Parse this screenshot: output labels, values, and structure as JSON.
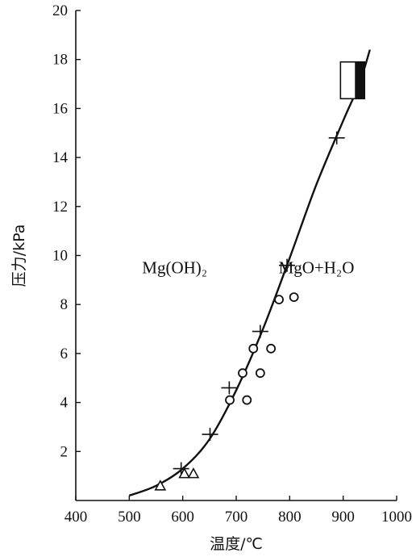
{
  "chart_data": {
    "type": "scatter",
    "xlabel": "温度/℃",
    "ylabel": "压力/kPa",
    "xlim": [
      400,
      1000
    ],
    "ylim": [
      0,
      20
    ],
    "x_ticks": [
      400,
      500,
      600,
      700,
      800,
      900,
      1000
    ],
    "y_ticks": [
      2,
      4,
      6,
      8,
      10,
      12,
      14,
      16,
      18,
      20
    ],
    "regions": [
      {
        "label": "Mg(OH)₂",
        "x": 585,
        "y": 9.5
      },
      {
        "label": "MgO+H₂O",
        "x": 850,
        "y": 9.5
      }
    ],
    "series": [
      {
        "marker": "line",
        "x": [
          500,
          550,
          600,
          650,
          700,
          750,
          800,
          850,
          900,
          930,
          950
        ],
        "y": [
          0.2,
          0.6,
          1.3,
          2.5,
          4.5,
          7.0,
          9.9,
          12.9,
          15.5,
          17.0,
          18.4
        ]
      },
      {
        "marker": "cross",
        "x": [
          597,
          651,
          687,
          745,
          795,
          888
        ],
        "y": [
          1.3,
          2.7,
          4.6,
          6.9,
          9.6,
          14.8
        ]
      },
      {
        "marker": "circle",
        "x": [
          688,
          712,
          720,
          732,
          745,
          765,
          780,
          808
        ],
        "y": [
          4.1,
          5.2,
          4.1,
          6.2,
          5.2,
          6.2,
          8.2,
          8.3
        ]
      },
      {
        "marker": "triangle",
        "x": [
          558,
          603,
          620
        ],
        "y": [
          0.6,
          1.1,
          1.1
        ]
      },
      {
        "marker": "box",
        "x_range": [
          895,
          940
        ],
        "y_range": [
          16.4,
          17.9
        ]
      }
    ]
  }
}
